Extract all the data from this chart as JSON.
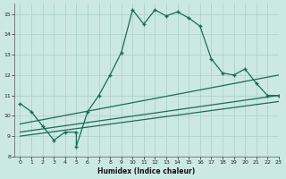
{
  "xlabel": "Humidex (Indice chaleur)",
  "xlim": [
    -0.5,
    23
  ],
  "ylim": [
    8,
    15.5
  ],
  "xticks": [
    0,
    1,
    2,
    3,
    4,
    5,
    6,
    7,
    8,
    9,
    10,
    11,
    12,
    13,
    14,
    15,
    16,
    17,
    18,
    19,
    20,
    21,
    22,
    23
  ],
  "yticks": [
    8,
    9,
    10,
    11,
    12,
    13,
    14,
    15
  ],
  "background_color": "#cce8e2",
  "grid_color": "#aacfc8",
  "line_color": "#1a6b5a",
  "line1_x": [
    0,
    1,
    2,
    3,
    4,
    5,
    5,
    6,
    7,
    8,
    9,
    10,
    11,
    12,
    13,
    14,
    15,
    16,
    17,
    18,
    19,
    20,
    21,
    22,
    23
  ],
  "line1_y": [
    10.6,
    10.2,
    9.5,
    8.8,
    9.2,
    9.2,
    8.5,
    10.2,
    11.0,
    12.0,
    13.1,
    15.2,
    14.5,
    15.2,
    14.9,
    15.1,
    14.8,
    14.4,
    12.8,
    12.1,
    12.0,
    12.3,
    11.6,
    11.0,
    11.0
  ],
  "line2_x": [
    0,
    23
  ],
  "line2_y": [
    9.6,
    12.0
  ],
  "line3_x": [
    0,
    23
  ],
  "line3_y": [
    9.2,
    11.0
  ],
  "line4_x": [
    0,
    23
  ],
  "line4_y": [
    9.0,
    10.7
  ]
}
